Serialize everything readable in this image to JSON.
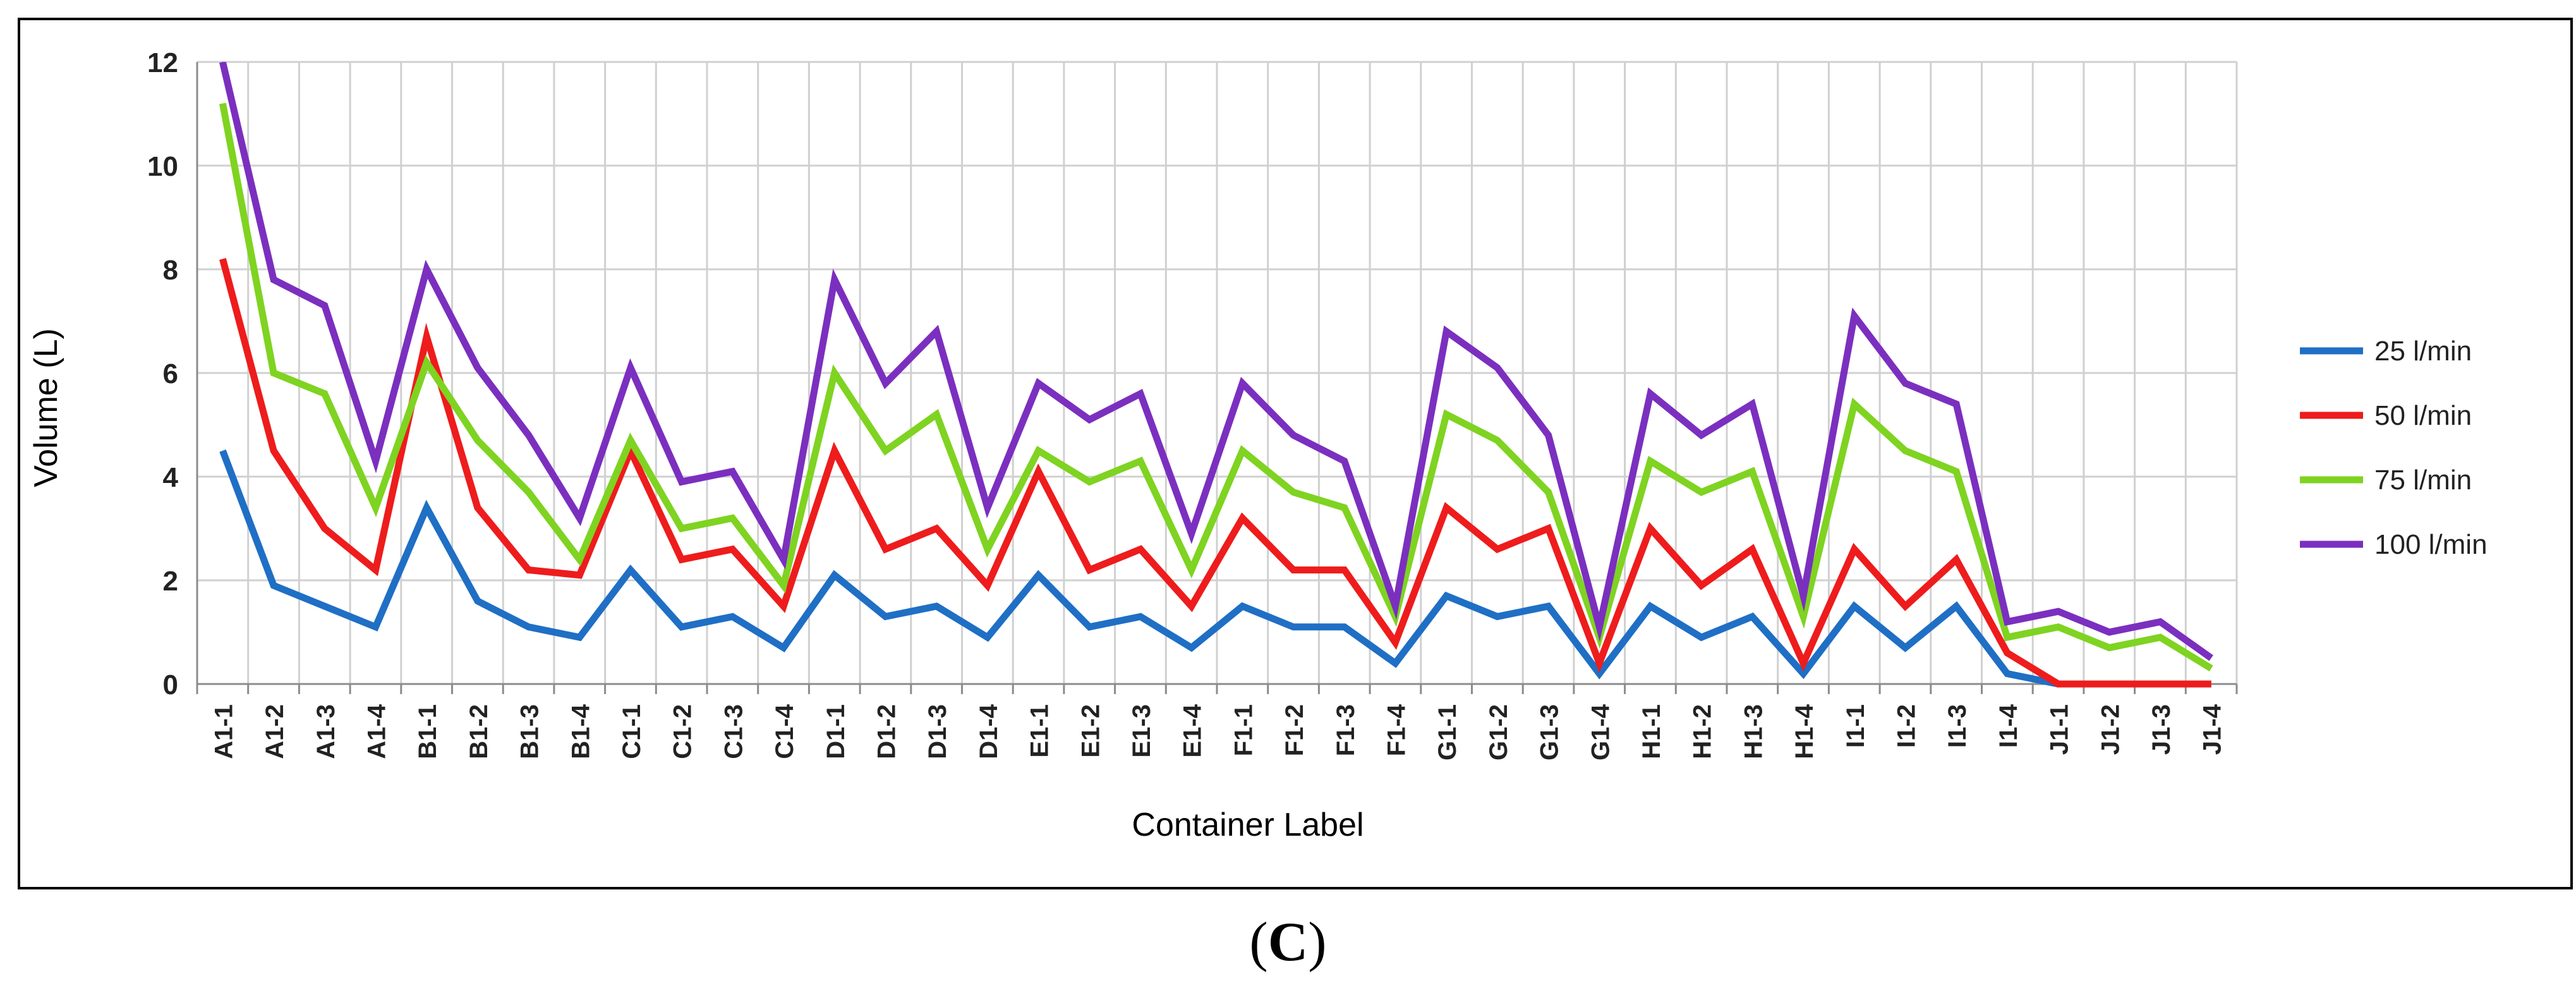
{
  "chart_data": {
    "type": "line",
    "title": "",
    "xlabel": "Container Label",
    "ylabel": "Volume (L)",
    "ylim": [
      0,
      12
    ],
    "yticks": [
      "0",
      "2",
      "4",
      "6",
      "8",
      "10",
      "12"
    ],
    "grid": true,
    "legend_position": "right",
    "categories": [
      "A1-1",
      "A1-2",
      "A1-3",
      "A1-4",
      "B1-1",
      "B1-2",
      "B1-3",
      "B1-4",
      "C1-1",
      "C1-2",
      "C1-3",
      "C1-4",
      "D1-1",
      "D1-2",
      "D1-3",
      "D1-4",
      "E1-1",
      "E1-2",
      "E1-3",
      "E1-4",
      "F1-1",
      "F1-2",
      "F1-3",
      "F1-4",
      "G1-1",
      "G1-2",
      "G1-3",
      "G1-4",
      "H1-1",
      "H1-2",
      "H1-3",
      "H1-4",
      "I1-1",
      "I1-2",
      "I1-3",
      "I1-4",
      "J1-1",
      "J1-2",
      "J1-3",
      "J1-4"
    ],
    "series": [
      {
        "name": "25 l/min",
        "color": "#1f6fc5",
        "values": [
          4.5,
          1.9,
          1.5,
          1.1,
          3.4,
          1.6,
          1.1,
          0.9,
          2.2,
          1.1,
          1.3,
          0.7,
          2.1,
          1.3,
          1.5,
          0.9,
          2.1,
          1.1,
          1.3,
          0.7,
          1.5,
          1.1,
          1.1,
          0.4,
          1.7,
          1.3,
          1.5,
          0.2,
          1.5,
          0.9,
          1.3,
          0.2,
          1.5,
          0.7,
          1.5,
          0.2,
          0,
          0,
          0,
          0
        ]
      },
      {
        "name": "50 l/min",
        "color": "#ee1c1c",
        "values": [
          8.2,
          4.5,
          3.0,
          2.2,
          6.7,
          3.4,
          2.2,
          2.1,
          4.5,
          2.4,
          2.6,
          1.5,
          4.5,
          2.6,
          3.0,
          1.9,
          4.1,
          2.2,
          2.6,
          1.5,
          3.2,
          2.2,
          2.2,
          0.8,
          3.4,
          2.6,
          3.0,
          0.4,
          3.0,
          1.9,
          2.6,
          0.4,
          2.6,
          1.5,
          2.4,
          0.6,
          0,
          0,
          0,
          0
        ]
      },
      {
        "name": "75 l/min",
        "color": "#7fd321",
        "values": [
          11.2,
          6.0,
          5.6,
          3.4,
          6.2,
          4.7,
          3.7,
          2.4,
          4.7,
          3.0,
          3.2,
          1.9,
          6.0,
          4.5,
          5.2,
          2.6,
          4.5,
          3.9,
          4.3,
          2.2,
          4.5,
          3.7,
          3.4,
          1.3,
          5.2,
          4.7,
          3.7,
          0.9,
          4.3,
          3.7,
          4.1,
          1.3,
          5.4,
          4.5,
          4.1,
          0.9,
          1.1,
          0.7,
          0.9,
          0.3
        ]
      },
      {
        "name": "100 l/min",
        "color": "#7b2fbf",
        "values": [
          12.0,
          7.8,
          7.3,
          4.3,
          8.0,
          6.1,
          4.8,
          3.2,
          6.1,
          3.9,
          4.1,
          2.4,
          7.8,
          5.8,
          6.8,
          3.4,
          5.8,
          5.1,
          5.6,
          2.9,
          5.8,
          4.8,
          4.3,
          1.5,
          6.8,
          6.1,
          4.8,
          1.1,
          5.6,
          4.8,
          5.4,
          1.7,
          7.1,
          5.8,
          5.4,
          1.2,
          1.4,
          1.0,
          1.2,
          0.5
        ]
      }
    ]
  },
  "caption": {
    "open": "(",
    "letter": "C",
    "close": ")"
  }
}
